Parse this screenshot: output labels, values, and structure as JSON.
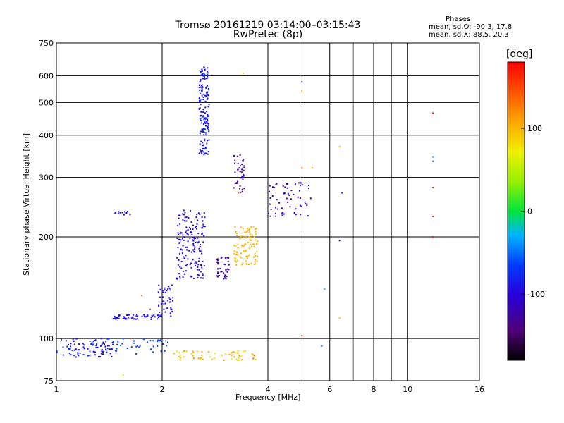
{
  "chart_data": {
    "type": "scatter",
    "title": "Tromsø 20161219 03:14:00–03:15:43",
    "subtitle": "RwPretec (8p)",
    "xlabel": "Frequency [MHz]",
    "ylabel": "Stationary phase Virtual Height [km]",
    "x_scale": "log",
    "y_scale": "log",
    "xlim": [
      1,
      16
    ],
    "ylim": [
      75,
      750
    ],
    "x_ticks": [
      1,
      2,
      4,
      6,
      8,
      10,
      16
    ],
    "x_tick_labels": [
      "1",
      "2",
      "4",
      "6",
      "8",
      "10",
      "16"
    ],
    "x_grid": [
      2,
      4,
      6,
      8,
      10
    ],
    "x_minor_grid": [
      5,
      7,
      9
    ],
    "y_ticks": [
      75,
      100,
      200,
      300,
      400,
      500,
      600,
      750
    ],
    "y_tick_labels": [
      "75",
      "100",
      "200",
      "300",
      "400",
      "500",
      "600",
      "750"
    ],
    "grid": true,
    "phases_legend": {
      "title": "Phases",
      "line1": "mean, sd,O: -90.3, 17.8",
      "line2": "mean, sd,X:  88.5, 20.3"
    },
    "colorbar": {
      "label": "[deg]",
      "range": [
        -180,
        180
      ],
      "ticks": [
        100,
        0,
        -100
      ],
      "tick_labels": [
        "100",
        "0",
        "-100"
      ]
    },
    "clusters": [
      {
        "fx": [
          1.0,
          1.45
        ],
        "hx": [
          88,
          100
        ],
        "n": 80,
        "phase": [
          -110,
          -70
        ]
      },
      {
        "fx": [
          1.45,
          2.0
        ],
        "hx": [
          114,
          118
        ],
        "n": 60,
        "phase": [
          -100,
          -85
        ]
      },
      {
        "fx": [
          1.95,
          2.15
        ],
        "hx": [
          116,
          145
        ],
        "n": 40,
        "phase": [
          -100,
          -85
        ]
      },
      {
        "fx": [
          2.2,
          2.65
        ],
        "hx": [
          150,
          240
        ],
        "n": 160,
        "phase": [
          -105,
          -85
        ]
      },
      {
        "fx": [
          2.55,
          2.72
        ],
        "hx": [
          350,
          640
        ],
        "n": 170,
        "phase": [
          -100,
          -70
        ]
      },
      {
        "fx": [
          2.85,
          3.1
        ],
        "hx": [
          150,
          175
        ],
        "n": 40,
        "phase": [
          -140,
          -110
        ]
      },
      {
        "fx": [
          3.2,
          3.75
        ],
        "hx": [
          165,
          215
        ],
        "n": 100,
        "phase": [
          90,
          110
        ]
      },
      {
        "fx": [
          3.2,
          3.45
        ],
        "hx": [
          270,
          350
        ],
        "n": 40,
        "phase": [
          -140,
          -110
        ]
      },
      {
        "fx": [
          4.0,
          5.3
        ],
        "hx": [
          230,
          290
        ],
        "n": 60,
        "phase": [
          -140,
          -100
        ]
      },
      {
        "fx": [
          2.15,
          3.7
        ],
        "hx": [
          86,
          92
        ],
        "n": 60,
        "phase": [
          60,
          120
        ]
      },
      {
        "fx": [
          1.2,
          2.1
        ],
        "hx": [
          90,
          100
        ],
        "n": 50,
        "phase": [
          -75,
          -55
        ]
      },
      {
        "fx": [
          1.45,
          1.65
        ],
        "hx": [
          232,
          238
        ],
        "n": 12,
        "phase": [
          -100,
          -90
        ]
      }
    ],
    "points": [
      {
        "f": 11.8,
        "h": 465,
        "phase": 170
      },
      {
        "f": 11.8,
        "h": 280,
        "phase": 170
      },
      {
        "f": 11.8,
        "h": 230,
        "phase": 170
      },
      {
        "f": 11.8,
        "h": 200,
        "phase": 170
      },
      {
        "f": 11.8,
        "h": 345,
        "phase": -45
      },
      {
        "f": 11.8,
        "h": 335,
        "phase": -55
      },
      {
        "f": 6.4,
        "h": 370,
        "phase": 100
      },
      {
        "f": 6.4,
        "h": 115,
        "phase": 100
      },
      {
        "f": 6.5,
        "h": 270,
        "phase": -80
      },
      {
        "f": 6.4,
        "h": 195,
        "phase": -140
      },
      {
        "f": 5.0,
        "h": 575,
        "phase": -90
      },
      {
        "f": 5.0,
        "h": 540,
        "phase": 110
      },
      {
        "f": 5.0,
        "h": 320,
        "phase": 150
      },
      {
        "f": 5.35,
        "h": 320,
        "phase": 100
      },
      {
        "f": 5.0,
        "h": 102,
        "phase": 150
      },
      {
        "f": 5.7,
        "h": 95,
        "phase": -30
      },
      {
        "f": 5.8,
        "h": 140,
        "phase": -30
      },
      {
        "f": 3.4,
        "h": 610,
        "phase": 100
      },
      {
        "f": 3.3,
        "h": 270,
        "phase": 130
      },
      {
        "f": 1.85,
        "h": 122,
        "phase": 150
      },
      {
        "f": 1.75,
        "h": 134,
        "phase": 120
      },
      {
        "f": 1.55,
        "h": 78,
        "phase": 80
      }
    ]
  }
}
